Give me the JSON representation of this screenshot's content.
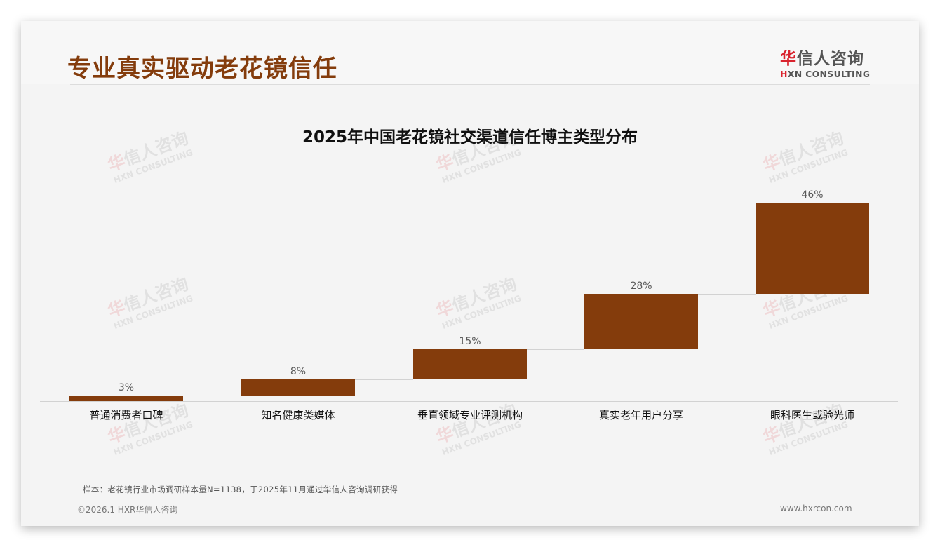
{
  "header": {
    "title": "专业真实驱动老花镜信任",
    "logo": {
      "cn_accent": "华",
      "cn_rest": "信人咨询",
      "en_accent": "H",
      "en_rest": "XN CONSULTING"
    }
  },
  "watermark": {
    "cn_accent": "华",
    "cn_rest": "信人咨询",
    "en": "HXN CONSULTING"
  },
  "chart_data": {
    "type": "bar",
    "subtype": "waterfall",
    "title": "2025年中国老花镜社交渠道信任博主类型分布",
    "categories": [
      "普通消费者口碑",
      "知名健康类媒体",
      "垂直领域专业评测机构",
      "真实老年用户分享",
      "眼科医生或验光师"
    ],
    "values": [
      3,
      8,
      15,
      28,
      46
    ],
    "value_labels": [
      "3%",
      "8%",
      "15%",
      "28%",
      "46%"
    ],
    "xlabel": "",
    "ylabel": "",
    "unit": "%",
    "grid": false,
    "legend": "none",
    "bar_color": "#843c0c"
  },
  "footer": {
    "note": "样本：老花镜行业市场调研样本量N=1138，于2025年11月通过华信人咨询调研获得",
    "copyright": "©2026.1 HXR华信人咨询",
    "website": "www.hxrcon.com"
  }
}
